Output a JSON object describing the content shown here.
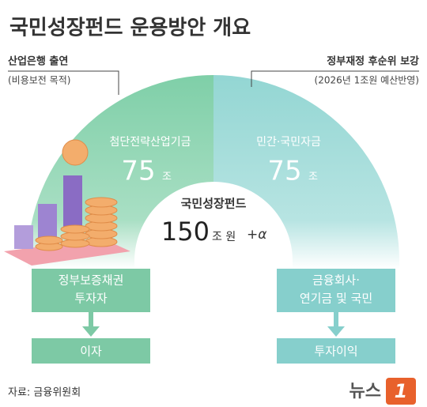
{
  "header": {
    "title": "국민성장펀드 운용방안 개요"
  },
  "left": {
    "source": "산업은행 출연",
    "source_note": "(비용보전 목적)",
    "fund": "첨단전략산업기금",
    "amount": 75,
    "unit": "조",
    "investor": [
      "정부보증채권",
      "투자자"
    ],
    "return": "이자"
  },
  "right": {
    "source": "정부재정 후순위 보강",
    "source_note": "(2026년 1조원 예산반영)",
    "fund": "민간·국민자금",
    "amount": 75,
    "unit": "조",
    "investor": [
      "금융회사·",
      "연기금 및 국민"
    ],
    "return": "투자이익"
  },
  "center": {
    "name": "국민성장펀드",
    "amount": 150,
    "unit": "조 원",
    "extra": "+α"
  },
  "footer": {
    "source": "자료: 금융위원회",
    "logo": "뉴스",
    "logo_mark": "1"
  }
}
